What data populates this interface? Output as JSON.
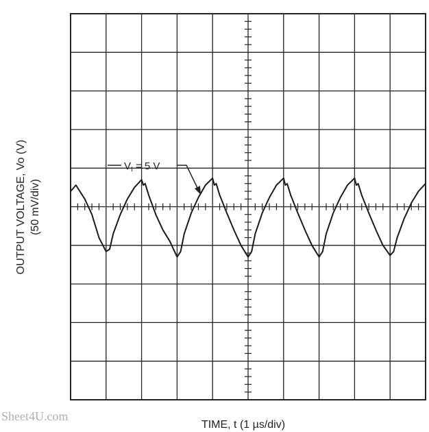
{
  "chart_data": {
    "type": "line",
    "title": "",
    "xlabel": "TIME, t (1 µs/div)",
    "ylabel_line1": "OUTPUT VOLTAGE, Vo (V)",
    "ylabel_line2": "(50 mV/div)",
    "x_divisions": 10,
    "y_divisions": 10,
    "x_unit_per_div": "1 µs",
    "y_unit_per_div": "50 mV",
    "xlim": [
      0,
      10
    ],
    "ylim": [
      -250,
      250
    ],
    "grid": true,
    "annotation": {
      "prefix": "V",
      "subscript": "I",
      "text": " = 5 V"
    },
    "series": [
      {
        "x": [
          0,
          0.15,
          0.4,
          0.6,
          0.8,
          1.0,
          1.1,
          1.2,
          1.4,
          1.6,
          1.8,
          2.0,
          2.05,
          2.1,
          2.2,
          2.4,
          2.6,
          2.8,
          3.0,
          3.1,
          3.2,
          3.4,
          3.6,
          3.8,
          4.0,
          4.05,
          4.1,
          4.2,
          4.4,
          4.6,
          4.8,
          5.0,
          5.1,
          5.2,
          5.4,
          5.6,
          5.8,
          6.0,
          6.05,
          6.1,
          6.2,
          6.4,
          6.6,
          6.8,
          7.0,
          7.1,
          7.2,
          7.4,
          7.6,
          7.8,
          8.0,
          8.05,
          8.1,
          8.2,
          8.4,
          8.6,
          8.8,
          9.0,
          9.1,
          9.2,
          9.4,
          9.6,
          9.8,
          10.0
        ],
        "y": [
          20,
          28,
          10,
          -10,
          -40,
          -58,
          -55,
          -35,
          -10,
          10,
          25,
          35,
          28,
          30,
          15,
          -10,
          -30,
          -45,
          -65,
          -58,
          -35,
          -8,
          12,
          28,
          37,
          28,
          30,
          15,
          -8,
          -30,
          -50,
          -65,
          -58,
          -35,
          -8,
          12,
          28,
          37,
          28,
          30,
          15,
          -8,
          -30,
          -50,
          -65,
          -58,
          -35,
          -8,
          12,
          28,
          37,
          28,
          30,
          15,
          -8,
          -30,
          -50,
          -63,
          -58,
          -40,
          -15,
          5,
          20,
          30
        ]
      }
    ]
  },
  "watermark": "Sheet4U.com"
}
